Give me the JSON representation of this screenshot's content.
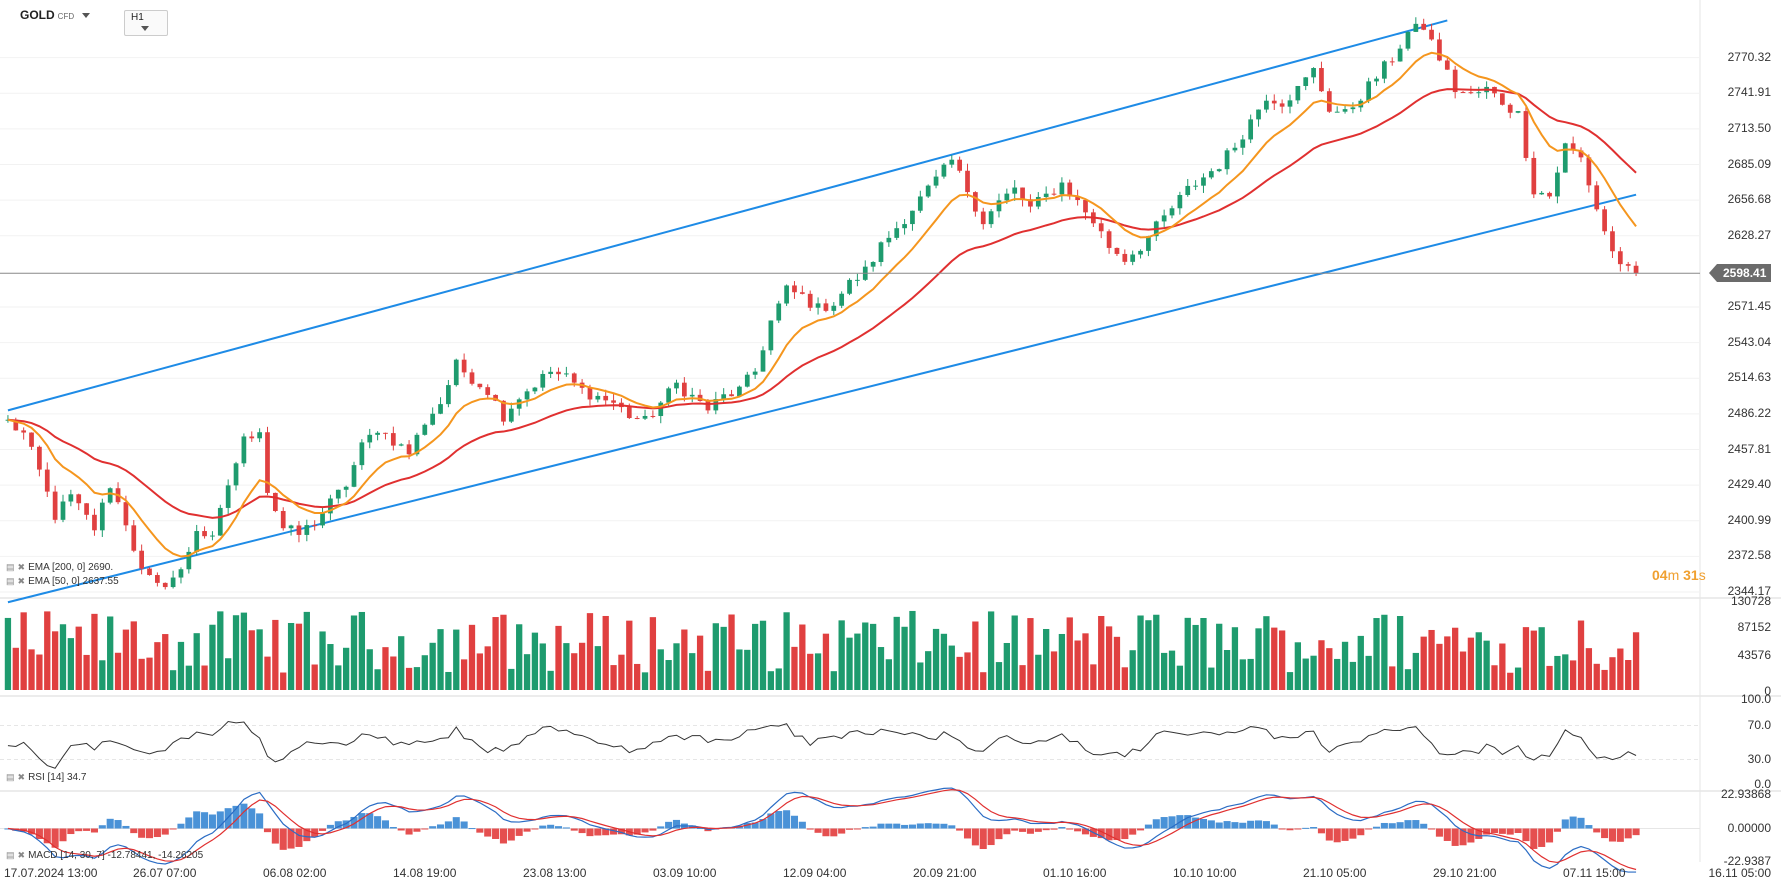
{
  "header": {
    "symbol": "GOLD",
    "symbol_type": "CFD",
    "timeframe": "H1"
  },
  "indicators": {
    "ema200_label": "EMA [200, 0] 2690.",
    "ema50_label": "EMA [50, 0] 2637.55",
    "rsi_label": "RSI [14] 34.7",
    "macd_label": "MACD [14, 30, 7] -12.78441, -14.26205"
  },
  "price_axis": [
    "2770.32",
    "2741.91",
    "2713.50",
    "2685.09",
    "2656.68",
    "2628.27",
    "2598.41",
    "2571.45",
    "2543.04",
    "2514.63",
    "2486.22",
    "2457.81",
    "2429.40",
    "2400.99",
    "2372.58",
    "2344.17"
  ],
  "volume_axis": [
    "130728",
    "87152",
    "43576",
    "0"
  ],
  "rsi_axis": [
    "100.0",
    "70.0",
    "30.0",
    "0.0"
  ],
  "macd_axis": [
    "22.93868",
    "0.00000",
    "-22.9387"
  ],
  "time_axis": [
    "17.07.2024 13:00",
    "26.07 07:00",
    "06.08 02:00",
    "14.08 19:00",
    "23.08 13:00",
    "03.09 10:00",
    "12.09 04:00",
    "20.09 21:00",
    "01.10 16:00",
    "10.10 10:00",
    "21.10 05:00",
    "29.10 21:00",
    "07.11 15:00",
    "16.11 05:00"
  ],
  "current_price": "2598.41",
  "countdown": {
    "min": "04",
    "min_unit": "m",
    "sec": "31",
    "sec_unit": "s"
  },
  "colors": {
    "up": "#1e9b6e",
    "down": "#e04040",
    "ema50": "#f5961e",
    "ema200": "#e03030",
    "channel": "#1e8be6",
    "rsi": "#333333",
    "macd_line": "#2b6cc4",
    "macd_signal": "#e03030",
    "macd_hist_pos": "#2a7fd0",
    "macd_hist_neg": "#e03030"
  },
  "chart_data": {
    "type": "candlestick",
    "ylim": [
      2344.17,
      2798.73
    ],
    "price_path": [
      [
        0,
        2480
      ],
      [
        2,
        2470
      ],
      [
        4,
        2440
      ],
      [
        6,
        2405
      ],
      [
        8,
        2420
      ],
      [
        11,
        2395
      ],
      [
        13,
        2430
      ],
      [
        15,
        2400
      ],
      [
        17,
        2360
      ],
      [
        19,
        2348
      ],
      [
        22,
        2360
      ],
      [
        24,
        2395
      ],
      [
        26,
        2385
      ],
      [
        28,
        2430
      ],
      [
        30,
        2465
      ],
      [
        32,
        2475
      ],
      [
        33,
        2425
      ],
      [
        35,
        2395
      ],
      [
        37,
        2390
      ],
      [
        39,
        2400
      ],
      [
        41,
        2415
      ],
      [
        43,
        2430
      ],
      [
        45,
        2460
      ],
      [
        47,
        2475
      ],
      [
        49,
        2465
      ],
      [
        51,
        2455
      ],
      [
        53,
        2480
      ],
      [
        55,
        2495
      ],
      [
        57,
        2525
      ],
      [
        59,
        2515
      ],
      [
        61,
        2505
      ],
      [
        63,
        2485
      ],
      [
        65,
        2500
      ],
      [
        67,
        2510
      ],
      [
        69,
        2520
      ],
      [
        71,
        2515
      ],
      [
        73,
        2505
      ],
      [
        75,
        2500
      ],
      [
        77,
        2495
      ],
      [
        79,
        2485
      ],
      [
        81,
        2480
      ],
      [
        83,
        2495
      ],
      [
        85,
        2510
      ],
      [
        87,
        2500
      ],
      [
        89,
        2490
      ],
      [
        91,
        2500
      ],
      [
        93,
        2505
      ],
      [
        95,
        2520
      ],
      [
        97,
        2560
      ],
      [
        99,
        2585
      ],
      [
        101,
        2580
      ],
      [
        103,
        2570
      ],
      [
        105,
        2575
      ],
      [
        107,
        2590
      ],
      [
        109,
        2600
      ],
      [
        111,
        2620
      ],
      [
        113,
        2635
      ],
      [
        115,
        2650
      ],
      [
        117,
        2665
      ],
      [
        119,
        2680
      ],
      [
        120,
        2688
      ],
      [
        122,
        2665
      ],
      [
        124,
        2640
      ],
      [
        126,
        2655
      ],
      [
        128,
        2665
      ],
      [
        130,
        2650
      ],
      [
        132,
        2660
      ],
      [
        134,
        2670
      ],
      [
        136,
        2655
      ],
      [
        138,
        2640
      ],
      [
        140,
        2620
      ],
      [
        142,
        2610
      ],
      [
        144,
        2620
      ],
      [
        146,
        2635
      ],
      [
        148,
        2650
      ],
      [
        150,
        2665
      ],
      [
        152,
        2675
      ],
      [
        154,
        2685
      ],
      [
        156,
        2700
      ],
      [
        158,
        2720
      ],
      [
        160,
        2740
      ],
      [
        162,
        2735
      ],
      [
        164,
        2745
      ],
      [
        166,
        2760
      ],
      [
        168,
        2730
      ],
      [
        170,
        2725
      ],
      [
        172,
        2740
      ],
      [
        174,
        2755
      ],
      [
        176,
        2770
      ],
      [
        178,
        2790
      ],
      [
        180,
        2795
      ],
      [
        182,
        2770
      ],
      [
        184,
        2745
      ],
      [
        186,
        2740
      ],
      [
        188,
        2745
      ],
      [
        190,
        2735
      ],
      [
        192,
        2725
      ],
      [
        194,
        2665
      ],
      [
        196,
        2660
      ],
      [
        198,
        2700
      ],
      [
        200,
        2690
      ],
      [
        202,
        2650
      ],
      [
        204,
        2615
      ],
      [
        206,
        2600
      ],
      [
        207,
        2598.41
      ]
    ],
    "ema50_last": 2637.55,
    "ema200_last": 2690,
    "channel_upper": [
      [
        0,
        2489
      ],
      [
        183,
        2800
      ]
    ],
    "channel_lower": [
      [
        0,
        2336
      ],
      [
        207,
        2661
      ]
    ],
    "current_price": 2598.41
  }
}
